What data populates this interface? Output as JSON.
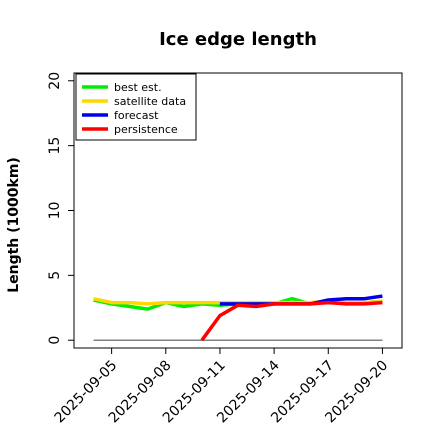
{
  "chart_data": {
    "type": "line",
    "title": "Ice edge length",
    "xlabel": "",
    "ylabel": "Length (1000km)",
    "ylim": [
      -0.6,
      20.6
    ],
    "yticks": [
      0,
      5,
      10,
      15,
      20
    ],
    "xlim": [
      "2025-09-02T22:00",
      "2025-09-21T02:00"
    ],
    "xticks": [
      "2025-09-05",
      "2025-09-08",
      "2025-09-11",
      "2025-09-14",
      "2025-09-17",
      "2025-09-20"
    ],
    "highlighted_xtick": "2025-09-11",
    "highlighted_xtick_color": "#228b22",
    "grid": false,
    "legend_placement": "upper-left",
    "series": [
      {
        "name": "best est.",
        "color": "#00ee00",
        "x": [
          "2025-09-04",
          "2025-09-05",
          "2025-09-06",
          "2025-09-07",
          "2025-09-08",
          "2025-09-09",
          "2025-09-10",
          "2025-09-11",
          "2025-09-12",
          "2025-09-13",
          "2025-09-14",
          "2025-09-15",
          "2025-09-16",
          "2025-09-17",
          "2025-09-18",
          "2025-09-19",
          "2025-09-20"
        ],
        "values": [
          3.1,
          2.8,
          2.6,
          2.4,
          2.9,
          2.6,
          2.8,
          2.7,
          2.8,
          2.9,
          2.8,
          3.2,
          2.8,
          3.0,
          2.8,
          2.9,
          3.0
        ]
      },
      {
        "name": "satellite data",
        "color": "#ffd700",
        "x": [
          "2025-09-04",
          "2025-09-05",
          "2025-09-06",
          "2025-09-07",
          "2025-09-08",
          "2025-09-09",
          "2025-09-10",
          "2025-09-11",
          "2025-09-12",
          "2025-09-13",
          "2025-09-14",
          "2025-09-15",
          "2025-09-16",
          "2025-09-17",
          "2025-09-18",
          "2025-09-19",
          "2025-09-20"
        ],
        "values": [
          3.2,
          2.9,
          2.9,
          2.8,
          2.9,
          2.9,
          2.9,
          2.9,
          2.9,
          2.9,
          2.9,
          2.9,
          2.9,
          3.0,
          2.9,
          2.9,
          3.0
        ]
      },
      {
        "name": "forecast",
        "color": "#0000ee",
        "x": [
          "2025-09-11",
          "2025-09-12",
          "2025-09-13",
          "2025-09-14",
          "2025-09-15",
          "2025-09-16",
          "2025-09-17",
          "2025-09-18",
          "2025-09-19",
          "2025-09-20"
        ],
        "values": [
          2.8,
          2.8,
          2.8,
          2.8,
          2.8,
          2.8,
          3.1,
          3.2,
          3.2,
          3.4
        ]
      },
      {
        "name": "persistence",
        "color": "#ff0000",
        "x": [
          "2025-09-10",
          "2025-09-11",
          "2025-09-12",
          "2025-09-13",
          "2025-09-14",
          "2025-09-15",
          "2025-09-16",
          "2025-09-17",
          "2025-09-18",
          "2025-09-19",
          "2025-09-20"
        ],
        "values": [
          0.0,
          1.9,
          2.7,
          2.6,
          2.8,
          2.8,
          2.8,
          2.9,
          2.8,
          2.8,
          2.9
        ]
      }
    ],
    "reference_lines": [
      {
        "color": "#808080",
        "x": [
          "2025-09-04",
          "2025-09-20"
        ],
        "values": [
          0,
          0
        ]
      }
    ]
  }
}
